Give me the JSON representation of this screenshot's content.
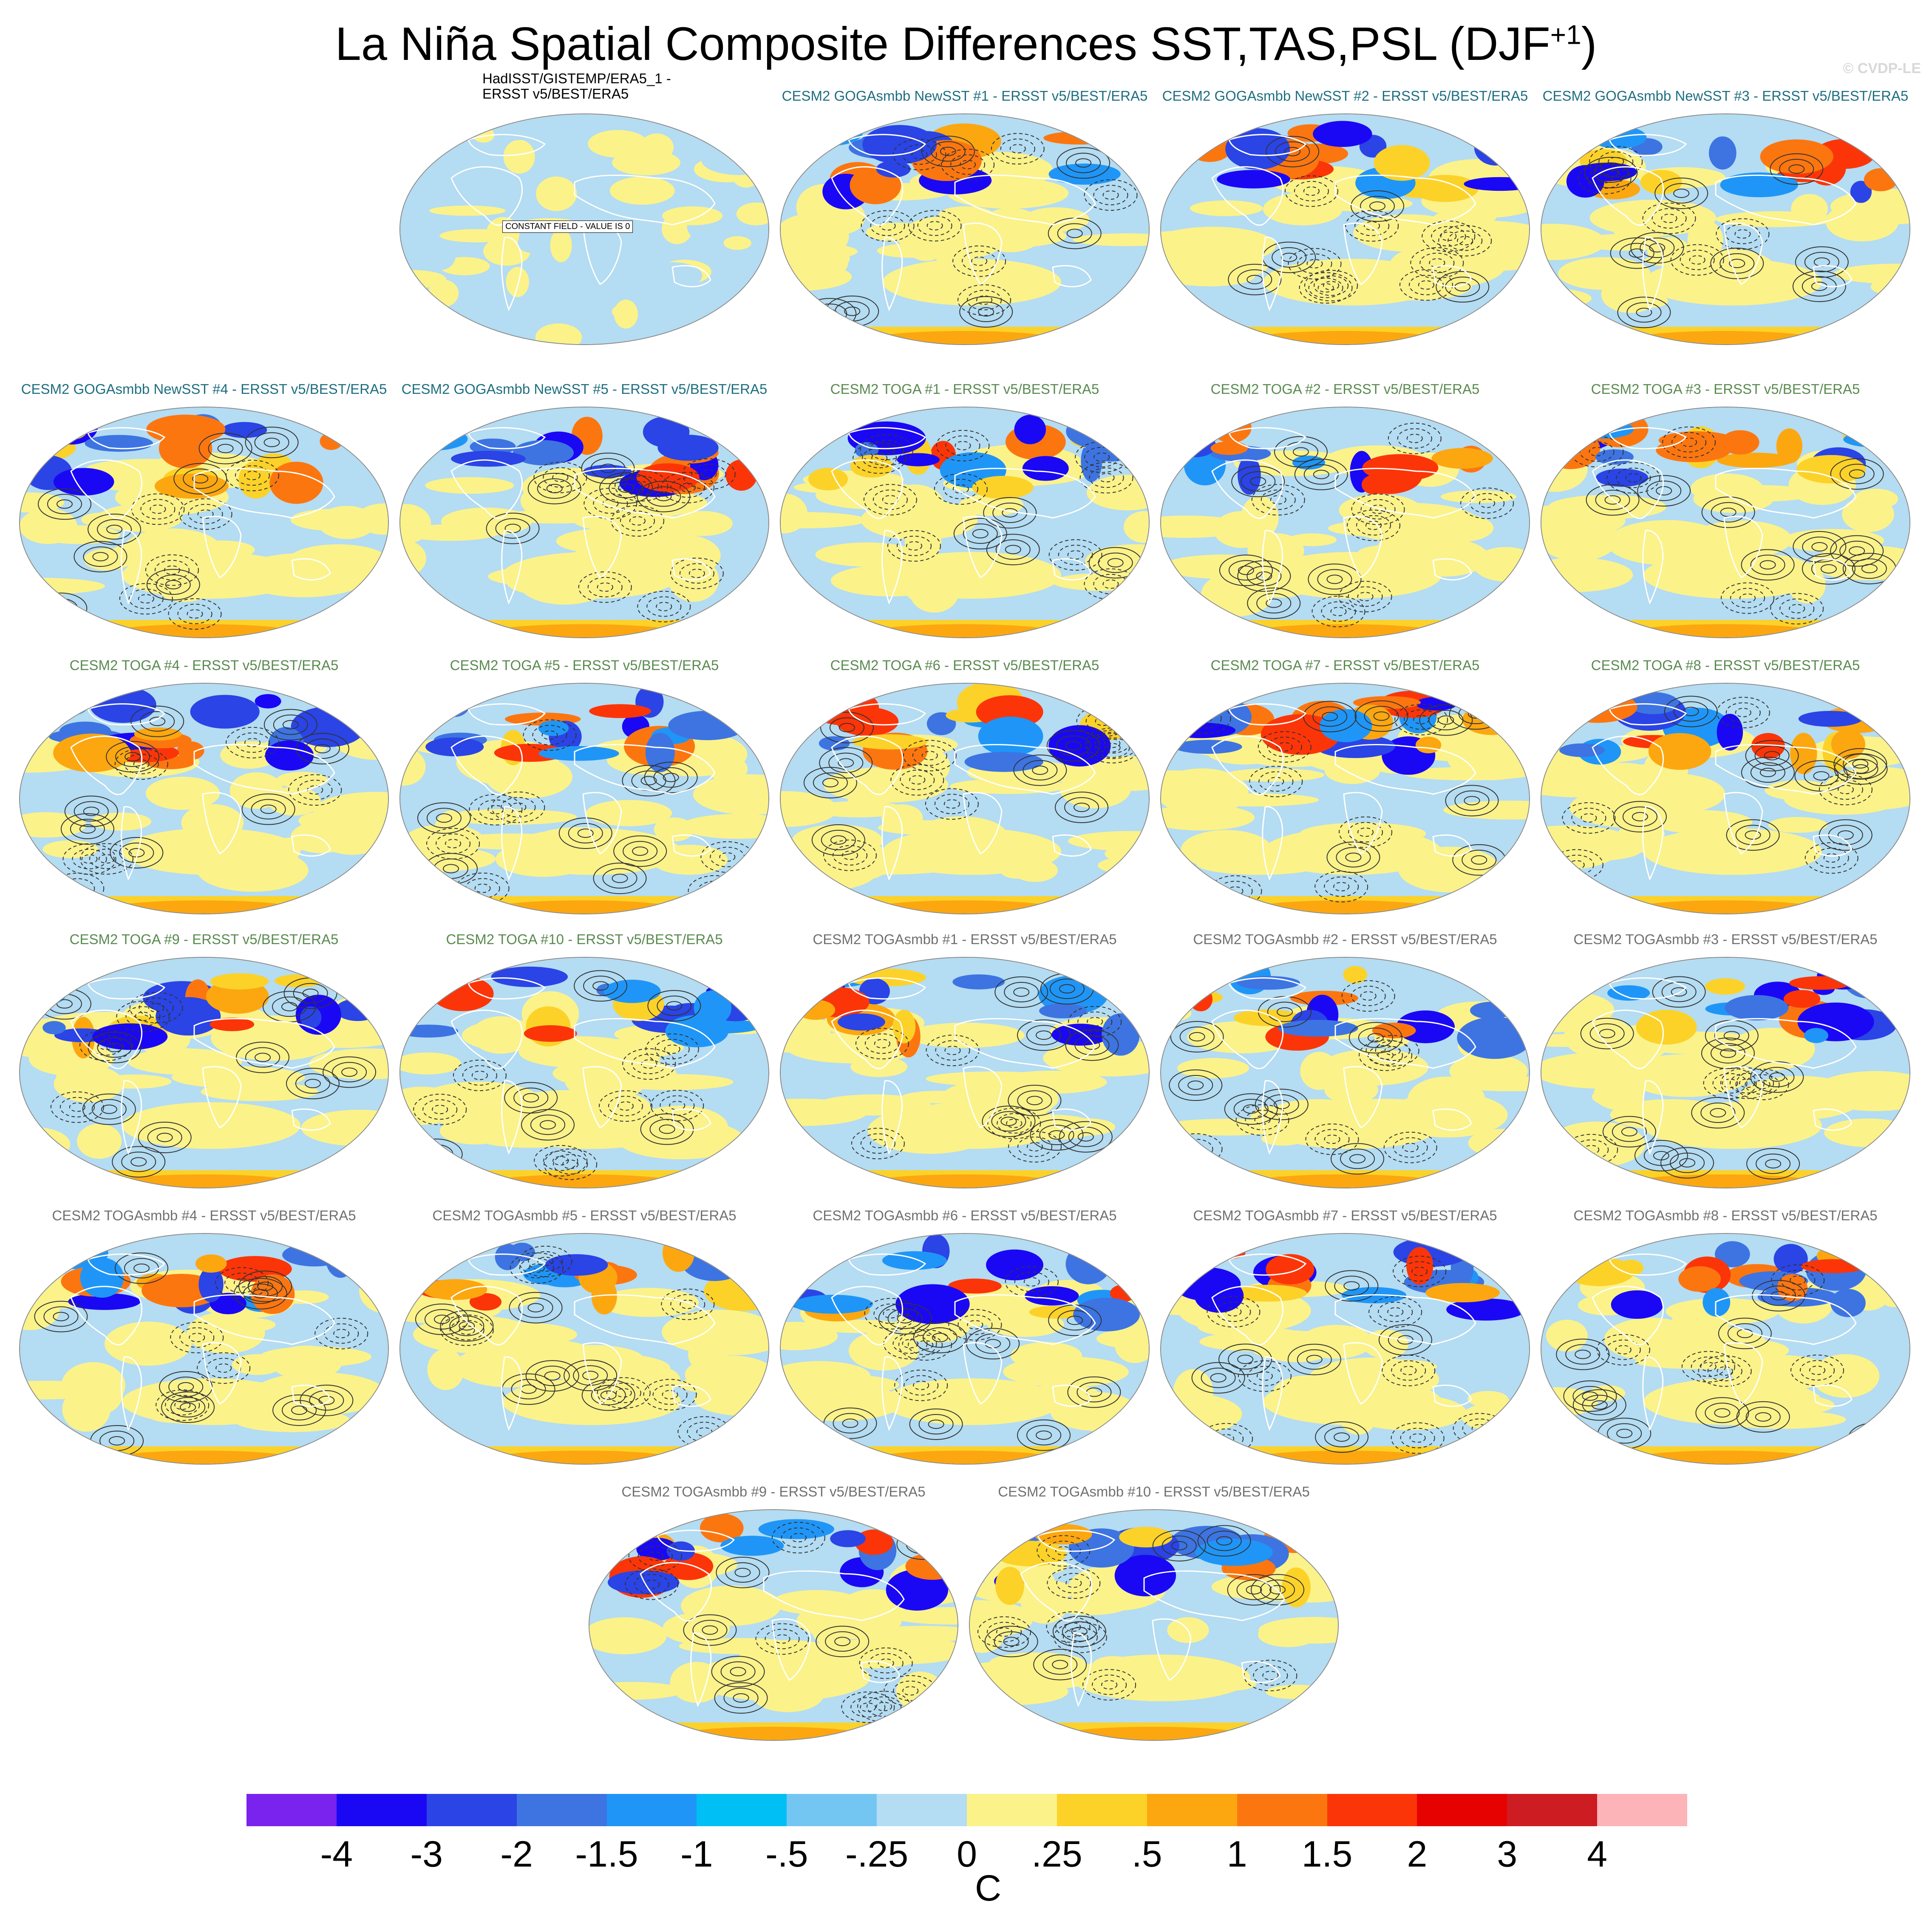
{
  "title": {
    "main": "La Niña Spatial Composite Differences SST,TAS,PSL (DJF",
    "superscript": "+1",
    "suffix": ")"
  },
  "credit": "© CVDP-LE",
  "constant_note": "CONSTANT FIELD - VALUE IS 0",
  "colors": {
    "obs_title": "#000000",
    "goga_title": "#1e6e80",
    "toga_title": "#5a8a50",
    "togasmbb_title": "#707070"
  },
  "panels": [
    {
      "label": "HadISST/GISTEMP/ERA5_1 -\nERSST v5/BEST/ERA5",
      "group": "obs",
      "constant": true
    },
    {
      "label": "CESM2 GOGAsmbb NewSST #1 - ERSST v5/BEST/ERA5",
      "group": "goga"
    },
    {
      "label": "CESM2 GOGAsmbb NewSST #2 - ERSST v5/BEST/ERA5",
      "group": "goga"
    },
    {
      "label": "CESM2 GOGAsmbb NewSST #3 - ERSST v5/BEST/ERA5",
      "group": "goga"
    },
    {
      "label": "CESM2 GOGAsmbb NewSST #4 - ERSST v5/BEST/ERA5",
      "group": "goga"
    },
    {
      "label": "CESM2 GOGAsmbb NewSST #5 - ERSST v5/BEST/ERA5",
      "group": "goga"
    },
    {
      "label": "CESM2 TOGA #1 - ERSST v5/BEST/ERA5",
      "group": "toga"
    },
    {
      "label": "CESM2 TOGA #2 - ERSST v5/BEST/ERA5",
      "group": "toga"
    },
    {
      "label": "CESM2 TOGA #3 - ERSST v5/BEST/ERA5",
      "group": "toga"
    },
    {
      "label": "CESM2 TOGA #4 - ERSST v5/BEST/ERA5",
      "group": "toga"
    },
    {
      "label": "CESM2 TOGA #5 - ERSST v5/BEST/ERA5",
      "group": "toga"
    },
    {
      "label": "CESM2 TOGA #6 - ERSST v5/BEST/ERA5",
      "group": "toga"
    },
    {
      "label": "CESM2 TOGA #7 - ERSST v5/BEST/ERA5",
      "group": "toga"
    },
    {
      "label": "CESM2 TOGA #8 - ERSST v5/BEST/ERA5",
      "group": "toga"
    },
    {
      "label": "CESM2 TOGA #9 - ERSST v5/BEST/ERA5",
      "group": "toga"
    },
    {
      "label": "CESM2 TOGA #10 - ERSST v5/BEST/ERA5",
      "group": "toga"
    },
    {
      "label": "CESM2 TOGAsmbb #1 - ERSST v5/BEST/ERA5",
      "group": "togasmbb"
    },
    {
      "label": "CESM2 TOGAsmbb #2 - ERSST v5/BEST/ERA5",
      "group": "togasmbb"
    },
    {
      "label": "CESM2 TOGAsmbb #3 - ERSST v5/BEST/ERA5",
      "group": "togasmbb"
    },
    {
      "label": "CESM2 TOGAsmbb #4 - ERSST v5/BEST/ERA5",
      "group": "togasmbb"
    },
    {
      "label": "CESM2 TOGAsmbb #5 - ERSST v5/BEST/ERA5",
      "group": "togasmbb"
    },
    {
      "label": "CESM2 TOGAsmbb #6 - ERSST v5/BEST/ERA5",
      "group": "togasmbb"
    },
    {
      "label": "CESM2 TOGAsmbb #7 - ERSST v5/BEST/ERA5",
      "group": "togasmbb"
    },
    {
      "label": "CESM2 TOGAsmbb #8 - ERSST v5/BEST/ERA5",
      "group": "togasmbb"
    },
    {
      "label": "CESM2 TOGAsmbb #9 - ERSST v5/BEST/ERA5",
      "group": "togasmbb"
    },
    {
      "label": "CESM2 TOGAsmbb #10 - ERSST v5/BEST/ERA5",
      "group": "togasmbb"
    }
  ],
  "chart_data": {
    "type": "heatmap",
    "title": "La Niña Spatial Composite Differences SST,TAS,PSL (DJF+1)",
    "colorbar": {
      "units": "C",
      "levels": [
        "-4",
        "-3",
        "-2",
        "-1.5",
        "-1",
        "-.5",
        "-.25",
        "0",
        ".25",
        ".5",
        "1",
        "1.5",
        "2",
        "3",
        "4"
      ],
      "colors": [
        "#7a22ee",
        "#1a08f5",
        "#2a44e6",
        "#3d74e2",
        "#1f96f7",
        "#00bff5",
        "#74c6f2",
        "#b4dcf2",
        "#fbf28a",
        "#fcd229",
        "#fca710",
        "#fc7610",
        "#fc3508",
        "#e70202",
        "#cd1c22",
        "#fcb4b8"
      ]
    }
  }
}
